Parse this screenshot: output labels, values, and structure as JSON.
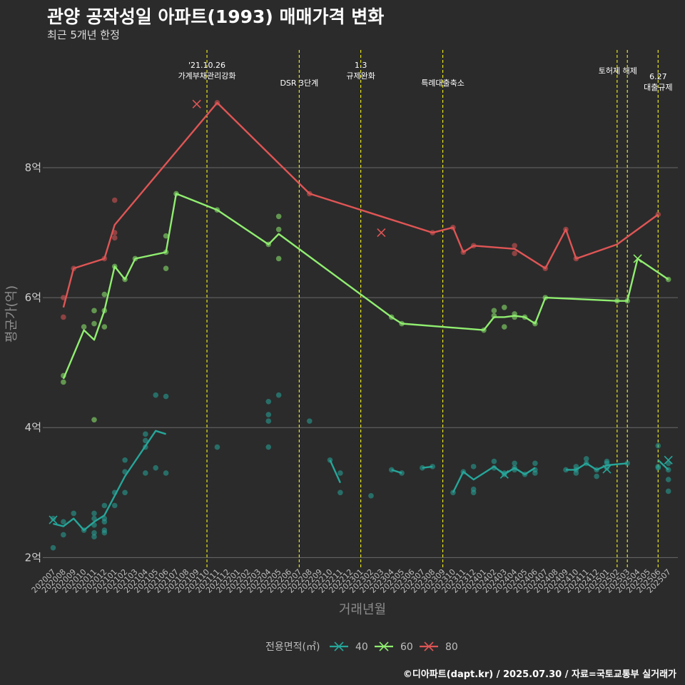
{
  "title": "관양 공작성일 아파트(1993) 매매가격 변화",
  "subtitle": "최근 5개년 한정",
  "footer": "©디아파트(dapt.kr) / 2025.07.30 / 자료=국토교통부 실거래가",
  "chart_data": {
    "type": "line",
    "xlabel": "거래년월",
    "ylabel": "평균가(억)",
    "ylim": [
      1.85,
      9.9
    ],
    "y_ticks": [
      {
        "value": 2,
        "label": "2억"
      },
      {
        "value": 4,
        "label": "4억"
      },
      {
        "value": 6,
        "label": "6억"
      },
      {
        "value": 8,
        "label": "8억"
      }
    ],
    "grid": true,
    "legend": {
      "title": "전용면적(㎡)",
      "position": "bottom"
    },
    "categories": [
      "202007",
      "202008",
      "202009",
      "202010",
      "202011",
      "202012",
      "202101",
      "202102",
      "202103",
      "202104",
      "202105",
      "202106",
      "202107",
      "202108",
      "202109",
      "202110",
      "202111",
      "202112",
      "202201",
      "202202",
      "202203",
      "202204",
      "202205",
      "202206",
      "202207",
      "202208",
      "202209",
      "202210",
      "202211",
      "202212",
      "202301",
      "202302",
      "202303",
      "202304",
      "202305",
      "202306",
      "202307",
      "202308",
      "202309",
      "202310",
      "202311",
      "202312",
      "202401",
      "202402",
      "202403",
      "202404",
      "202405",
      "202406",
      "202407",
      "202408",
      "202409",
      "202410",
      "202411",
      "202412",
      "202501",
      "202502",
      "202503",
      "202504",
      "202505",
      "202506",
      "202507"
    ],
    "events": [
      {
        "x": "202110",
        "lines": [
          "'21.10.26",
          "가계부채관리강화"
        ]
      },
      {
        "x": "202207",
        "lines": [
          "DSR 3단계"
        ]
      },
      {
        "x": "202301",
        "lines": [
          "1.3",
          "규제완화"
        ]
      },
      {
        "x": "202309",
        "lines": [
          "특례대출축소"
        ]
      },
      {
        "x": "202502",
        "lines": [
          "토허제 해제"
        ]
      },
      {
        "x": "202503",
        "lines": []
      },
      {
        "x": "202506",
        "lines": [
          "6.27",
          "대출규제"
        ]
      }
    ],
    "series": [
      {
        "name": "40",
        "color": "#26a69a",
        "segments": [
          [
            [
              "202007",
              2.52
            ],
            [
              "202008",
              2.48
            ],
            [
              "202009",
              2.6
            ],
            [
              "202010",
              2.42
            ],
            [
              "202011",
              2.55
            ],
            [
              "202012",
              2.65
            ],
            [
              "202102",
              3.25
            ],
            [
              "202105",
              3.95
            ],
            [
              "202106",
              3.9
            ]
          ],
          [
            [
              "202210",
              3.5
            ],
            [
              "202211",
              3.15
            ]
          ],
          [
            [
              "202304",
              3.35
            ],
            [
              "202305",
              3.3
            ]
          ],
          [
            [
              "202307",
              3.38
            ],
            [
              "202308",
              3.4
            ]
          ],
          [
            [
              "202310",
              3.0
            ],
            [
              "202311",
              3.32
            ],
            [
              "202312",
              3.2
            ],
            [
              "202402",
              3.4
            ],
            [
              "202403",
              3.28
            ],
            [
              "202404",
              3.38
            ],
            [
              "202405",
              3.28
            ],
            [
              "202406",
              3.38
            ]
          ],
          [
            [
              "202409",
              3.35
            ],
            [
              "202410",
              3.35
            ],
            [
              "202411",
              3.45
            ],
            [
              "202412",
              3.35
            ],
            [
              "202501",
              3.42
            ],
            [
              "202503",
              3.45
            ]
          ],
          [
            [
              "202506",
              3.5
            ],
            [
              "202507",
              3.35
            ]
          ]
        ],
        "points": [
          [
            "202007",
            2.15
          ],
          [
            "202007",
            2.6
          ],
          [
            "202008",
            2.55
          ],
          [
            "202008",
            2.35
          ],
          [
            "202009",
            2.68
          ],
          [
            "202010",
            2.42
          ],
          [
            "202011",
            2.68
          ],
          [
            "202011",
            2.6
          ],
          [
            "202011",
            2.5
          ],
          [
            "202011",
            2.38
          ],
          [
            "202011",
            2.32
          ],
          [
            "202012",
            2.55
          ],
          [
            "202012",
            2.6
          ],
          [
            "202012",
            2.42
          ],
          [
            "202012",
            2.38
          ],
          [
            "202012",
            2.8
          ],
          [
            "202101",
            2.8
          ],
          [
            "202101",
            3.0
          ],
          [
            "202102",
            3.5
          ],
          [
            "202102",
            3.32
          ],
          [
            "202102",
            3.0
          ],
          [
            "202104",
            3.9
          ],
          [
            "202104",
            3.8
          ],
          [
            "202104",
            3.7
          ],
          [
            "202104",
            3.3
          ],
          [
            "202105",
            4.5
          ],
          [
            "202105",
            3.38
          ],
          [
            "202106",
            4.48
          ],
          [
            "202106",
            3.3
          ],
          [
            "202111",
            3.7
          ],
          [
            "202204",
            4.4
          ],
          [
            "202204",
            4.2
          ],
          [
            "202204",
            4.1
          ],
          [
            "202204",
            3.7
          ],
          [
            "202205",
            4.5
          ],
          [
            "202208",
            4.1
          ],
          [
            "202210",
            3.5
          ],
          [
            "202211",
            3.3
          ],
          [
            "202211",
            3.0
          ],
          [
            "202302",
            2.95
          ],
          [
            "202304",
            3.35
          ],
          [
            "202305",
            3.3
          ],
          [
            "202307",
            3.38
          ],
          [
            "202308",
            3.4
          ],
          [
            "202310",
            3.0
          ],
          [
            "202311",
            3.32
          ],
          [
            "202312",
            3.4
          ],
          [
            "202312",
            3.05
          ],
          [
            "202312",
            3.0
          ],
          [
            "202402",
            3.48
          ],
          [
            "202402",
            3.38
          ],
          [
            "202403",
            3.3
          ],
          [
            "202403",
            3.28
          ],
          [
            "202404",
            3.45
          ],
          [
            "202404",
            3.38
          ],
          [
            "202404",
            3.35
          ],
          [
            "202405",
            3.28
          ],
          [
            "202406",
            3.45
          ],
          [
            "202406",
            3.35
          ],
          [
            "202406",
            3.3
          ],
          [
            "202409",
            3.35
          ],
          [
            "202410",
            3.4
          ],
          [
            "202410",
            3.35
          ],
          [
            "202410",
            3.3
          ],
          [
            "202411",
            3.52
          ],
          [
            "202411",
            3.45
          ],
          [
            "202412",
            3.35
          ],
          [
            "202412",
            3.25
          ],
          [
            "202501",
            3.48
          ],
          [
            "202501",
            3.45
          ],
          [
            "202501",
            3.38
          ],
          [
            "202503",
            3.45
          ],
          [
            "202506",
            3.72
          ],
          [
            "202506",
            3.4
          ],
          [
            "202506",
            3.38
          ],
          [
            "202507",
            3.45
          ],
          [
            "202507",
            3.35
          ],
          [
            "202507",
            3.2
          ],
          [
            "202507",
            3.02
          ]
        ],
        "cross_points": [
          [
            "202007",
            2.58
          ],
          [
            "202403",
            3.28
          ],
          [
            "202501",
            3.36
          ],
          [
            "202507",
            3.5
          ]
        ]
      },
      {
        "name": "60",
        "color": "#90ee70",
        "segments": [
          [
            [
              "202008",
              4.75
            ],
            [
              "202010",
              5.5
            ],
            [
              "202011",
              5.35
            ],
            [
              "202012",
              5.8
            ],
            [
              "202101",
              6.48
            ],
            [
              "202102",
              6.28
            ],
            [
              "202103",
              6.6
            ],
            [
              "202106",
              6.7
            ],
            [
              "202107",
              7.6
            ],
            [
              "202111",
              7.35
            ],
            [
              "202204",
              6.82
            ],
            [
              "202205",
              6.98
            ],
            [
              "202304",
              5.7
            ],
            [
              "202305",
              5.6
            ],
            [
              "202401",
              5.5
            ],
            [
              "202402",
              5.7
            ],
            [
              "202403",
              5.7
            ],
            [
              "202404",
              5.72
            ],
            [
              "202405",
              5.7
            ],
            [
              "202406",
              5.6
            ],
            [
              "202407",
              6.0
            ],
            [
              "202502",
              5.95
            ],
            [
              "202503",
              5.95
            ],
            [
              "202504",
              6.6
            ],
            [
              "202507",
              6.28
            ]
          ]
        ],
        "points": [
          [
            "202008",
            4.8
          ],
          [
            "202008",
            4.7
          ],
          [
            "202010",
            5.55
          ],
          [
            "202011",
            5.8
          ],
          [
            "202011",
            5.6
          ],
          [
            "202011",
            4.12
          ],
          [
            "202012",
            6.05
          ],
          [
            "202012",
            5.8
          ],
          [
            "202012",
            5.55
          ],
          [
            "202101",
            6.48
          ],
          [
            "202102",
            6.28
          ],
          [
            "202103",
            6.6
          ],
          [
            "202106",
            6.95
          ],
          [
            "202106",
            6.7
          ],
          [
            "202106",
            6.45
          ],
          [
            "202107",
            7.6
          ],
          [
            "202111",
            7.35
          ],
          [
            "202204",
            6.82
          ],
          [
            "202205",
            7.25
          ],
          [
            "202205",
            7.05
          ],
          [
            "202205",
            6.6
          ],
          [
            "202304",
            5.7
          ],
          [
            "202305",
            5.6
          ],
          [
            "202401",
            5.5
          ],
          [
            "202402",
            5.8
          ],
          [
            "202402",
            5.72
          ],
          [
            "202403",
            5.85
          ],
          [
            "202403",
            5.55
          ],
          [
            "202404",
            5.75
          ],
          [
            "202404",
            5.7
          ],
          [
            "202405",
            5.7
          ],
          [
            "202406",
            5.6
          ],
          [
            "202407",
            6.0
          ],
          [
            "202502",
            5.95
          ],
          [
            "202503",
            5.95
          ],
          [
            "202507",
            6.28
          ]
        ],
        "cross_points": [
          [
            "202504",
            6.6
          ]
        ]
      },
      {
        "name": "80",
        "color": "#e05555",
        "segments": [
          [
            [
              "202008",
              5.85
            ],
            [
              "202009",
              6.45
            ],
            [
              "202012",
              6.6
            ],
            [
              "202101",
              7.12
            ],
            [
              "202111",
              9.0
            ],
            [
              "202208",
              7.6
            ],
            [
              "202308",
              7.0
            ],
            [
              "202310",
              7.08
            ],
            [
              "202311",
              6.7
            ],
            [
              "202312",
              6.8
            ],
            [
              "202404",
              6.75
            ],
            [
              "202407",
              6.45
            ],
            [
              "202409",
              7.05
            ],
            [
              "202410",
              6.6
            ],
            [
              "202502",
              6.82
            ],
            [
              "202506",
              7.28
            ]
          ]
        ],
        "points": [
          [
            "202008",
            6.0
          ],
          [
            "202008",
            5.7
          ],
          [
            "202009",
            6.45
          ],
          [
            "202012",
            6.6
          ],
          [
            "202101",
            7.5
          ],
          [
            "202101",
            7.0
          ],
          [
            "202101",
            6.92
          ],
          [
            "202111",
            9.0
          ],
          [
            "202208",
            7.6
          ],
          [
            "202308",
            7.0
          ],
          [
            "202310",
            7.08
          ],
          [
            "202311",
            6.7
          ],
          [
            "202312",
            6.8
          ],
          [
            "202404",
            6.8
          ],
          [
            "202404",
            6.68
          ],
          [
            "202407",
            6.45
          ],
          [
            "202409",
            7.05
          ],
          [
            "202410",
            6.6
          ],
          [
            "202506",
            7.28
          ]
        ],
        "cross_points": [
          [
            "202109",
            8.98
          ],
          [
            "202303",
            7.0
          ]
        ]
      }
    ]
  }
}
